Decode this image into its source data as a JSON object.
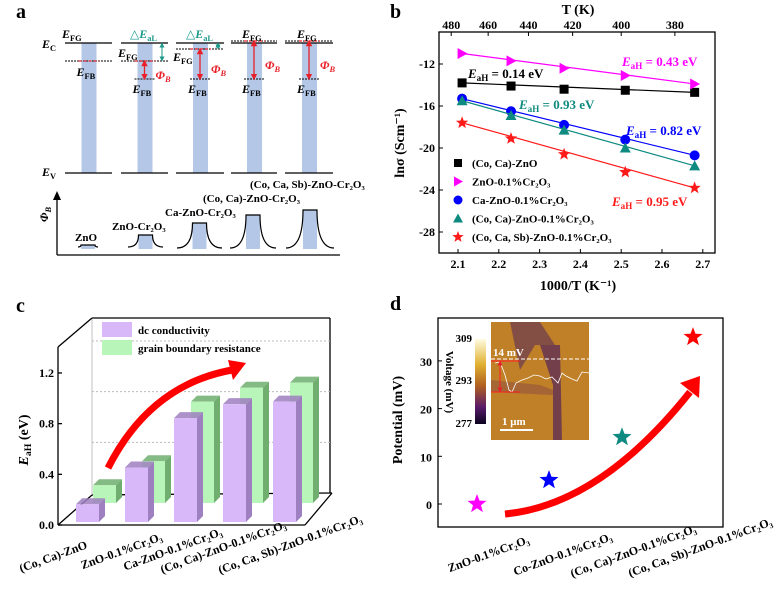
{
  "panel_labels": [
    "a",
    "b",
    "c",
    "d"
  ],
  "panel_a": {
    "ec_label": {
      "sym": "E",
      "sub": "C"
    },
    "ev_label": {
      "sym": "E",
      "sub": "V"
    },
    "efg": {
      "sym": "E",
      "sub": "FG"
    },
    "efb": {
      "sym": "E",
      "sub": "FB"
    },
    "delta": {
      "sym": "△E",
      "sub": "aL"
    },
    "phi": {
      "sym": "Φ",
      "sub": "B"
    },
    "phi_axis": {
      "sym": "Φ",
      "sub": "B"
    },
    "samples": [
      "ZnO",
      "ZnO-Cr₂O₃",
      "Ca-ZnO-Cr₂O₃",
      "(Co, Ca)-ZnO-Cr₂O₃",
      "(Co, Ca, Sb)-ZnO-Cr₂O₃"
    ],
    "colors": {
      "band": "#b4c7e7",
      "barrier": "#e8202a",
      "offset": "#1a9a8a"
    }
  },
  "chart_data": [
    {
      "panel": "b",
      "type": "line",
      "xlabel": "1000/T (K⁻¹)",
      "ylabel": "lnσ (Scm⁻¹)",
      "top_xlabel": "T (K)",
      "xlim": [
        2.05,
        2.75
      ],
      "ylim": [
        -30.5,
        -9.5
      ],
      "xticks": [
        2.1,
        2.2,
        2.3,
        2.4,
        2.5,
        2.6,
        2.7
      ],
      "yticks": [
        -12,
        -16,
        -20,
        -24,
        -28
      ],
      "top_ticks": [
        480,
        460,
        440,
        420,
        400,
        380
      ],
      "x": [
        2.11,
        2.23,
        2.36,
        2.51,
        2.68
      ],
      "series": [
        {
          "name": "(Co, Ca)-ZnO",
          "marker": "square",
          "color": "#000000",
          "values": [
            -13.8,
            -14.1,
            -14.4,
            -14.5,
            -14.7
          ],
          "annotation": " = 0.14 eV"
        },
        {
          "name": "ZnO-0.1%Cr₂O₃",
          "marker": "triangle-right",
          "color": "#ff00ff",
          "values": [
            -11.0,
            -11.7,
            -12.4,
            -13.1,
            -13.9
          ],
          "annotation": " = 0.43 eV"
        },
        {
          "name": "Ca-ZnO-0.1%Cr₂O₃",
          "marker": "circle",
          "color": "#0000ff",
          "values": [
            -15.3,
            -16.5,
            -17.8,
            -19.2,
            -20.7
          ],
          "annotation": " = 0.82 eV"
        },
        {
          "name": "(Co, Ca)-ZnO-0.1%Cr₂O₃",
          "marker": "triangle-up",
          "color": "#0e8a80",
          "values": [
            -15.5,
            -16.9,
            -18.3,
            -20.0,
            -21.7
          ],
          "annotation": " = 0.93 eV"
        },
        {
          "name": "(Co, Ca, Sb)-ZnO-0.1%Cr₂O₃",
          "marker": "star",
          "color": "#ff1a1a",
          "values": [
            -17.6,
            -19.1,
            -20.6,
            -22.3,
            -23.8
          ],
          "annotation": " = 0.95 eV"
        }
      ],
      "annotation_symbol": {
        "sym": "E",
        "sub": "aH"
      },
      "legend": "bottom-left"
    },
    {
      "panel": "c",
      "type": "bar",
      "ylabel": {
        "sym": "E",
        "sub": "aH",
        "rest": " (eV)"
      },
      "ylim": [
        0,
        1.4
      ],
      "yticks": [
        0.0,
        0.4,
        0.8,
        1.2
      ],
      "categories": [
        "(Co, Ca)-ZnO",
        "ZnO-0.1%Cr₂O₃",
        "Ca-ZnO-0.1%Cr₂O₃",
        "(Co, Ca)-ZnO-0.1%Cr₂O₃",
        "(Co, Ca, Sb)-ZnO-0.1%Cr₂O₃"
      ],
      "series": [
        {
          "name": "dc conductivity",
          "color": "#d8b8f8",
          "side": "#9e7fbf",
          "values": [
            0.14,
            0.43,
            0.82,
            0.93,
            0.95
          ]
        },
        {
          "name": "grain boundary resistance",
          "color": "#b8f5b8",
          "side": "#6fae6f",
          "values": [
            0.14,
            0.33,
            0.8,
            0.91,
            0.95
          ]
        }
      ],
      "legend": "top-left",
      "trend_arrow_color": "#ff0000"
    },
    {
      "panel": "d",
      "type": "scatter",
      "ylabel": "Potential (mV)",
      "ylim": [
        -5,
        38
      ],
      "yticks": [
        0,
        10,
        20,
        30
      ],
      "categories": [
        "ZnO-0.1%Cr₂O₃",
        "Co-ZnO-0.1%Cr₂O₃",
        "(Co, Ca)-ZnO-0.1%Cr₂O₃",
        "(Co, Ca, Sb)-ZnO-0.1%Cr₂O₃"
      ],
      "values": [
        0,
        5,
        14,
        35
      ],
      "colors": [
        "#ff00ff",
        "#0000ff",
        "#0e8a80",
        "#ff0000"
      ],
      "inset": {
        "colorbar_ticks": [
          "309",
          "293",
          "277"
        ],
        "colorbar_label": "Voltage (mV)",
        "barrier_label": "14 mV",
        "scale_bar": "1 μm"
      }
    }
  ]
}
